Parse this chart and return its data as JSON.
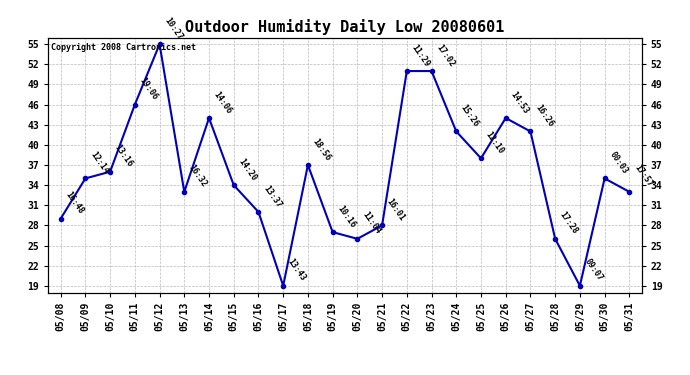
{
  "title": "Outdoor Humidity Daily Low 20080601",
  "copyright": "Copyright 2008 Cartronics.net",
  "dates": [
    "05/08",
    "05/09",
    "05/10",
    "05/11",
    "05/12",
    "05/13",
    "05/14",
    "05/15",
    "05/16",
    "05/17",
    "05/18",
    "05/19",
    "05/20",
    "05/21",
    "05/22",
    "05/23",
    "05/24",
    "05/25",
    "05/26",
    "05/27",
    "05/28",
    "05/29",
    "05/30",
    "05/31"
  ],
  "values": [
    29,
    35,
    36,
    46,
    55,
    33,
    44,
    34,
    30,
    19,
    37,
    27,
    26,
    28,
    51,
    51,
    42,
    38,
    44,
    42,
    26,
    19,
    35,
    33
  ],
  "labels": [
    "16:48",
    "12:14",
    "13:16",
    "19:06",
    "10:27",
    "16:32",
    "14:06",
    "14:20",
    "13:37",
    "13:43",
    "18:56",
    "10:16",
    "11:04",
    "16:01",
    "11:29",
    "17:02",
    "15:26",
    "12:10",
    "14:53",
    "16:26",
    "17:28",
    "09:07",
    "00:03",
    "17:57"
  ],
  "line_color": "#0000bb",
  "marker_color": "#0000bb",
  "bg_color": "#ffffff",
  "grid_color": "#bbbbbb",
  "ylim": [
    18,
    56
  ],
  "yticks": [
    19,
    22,
    25,
    28,
    31,
    34,
    37,
    40,
    43,
    46,
    49,
    52,
    55
  ],
  "title_fontsize": 11,
  "label_fontsize": 6,
  "tick_fontsize": 7,
  "copyright_fontsize": 6
}
